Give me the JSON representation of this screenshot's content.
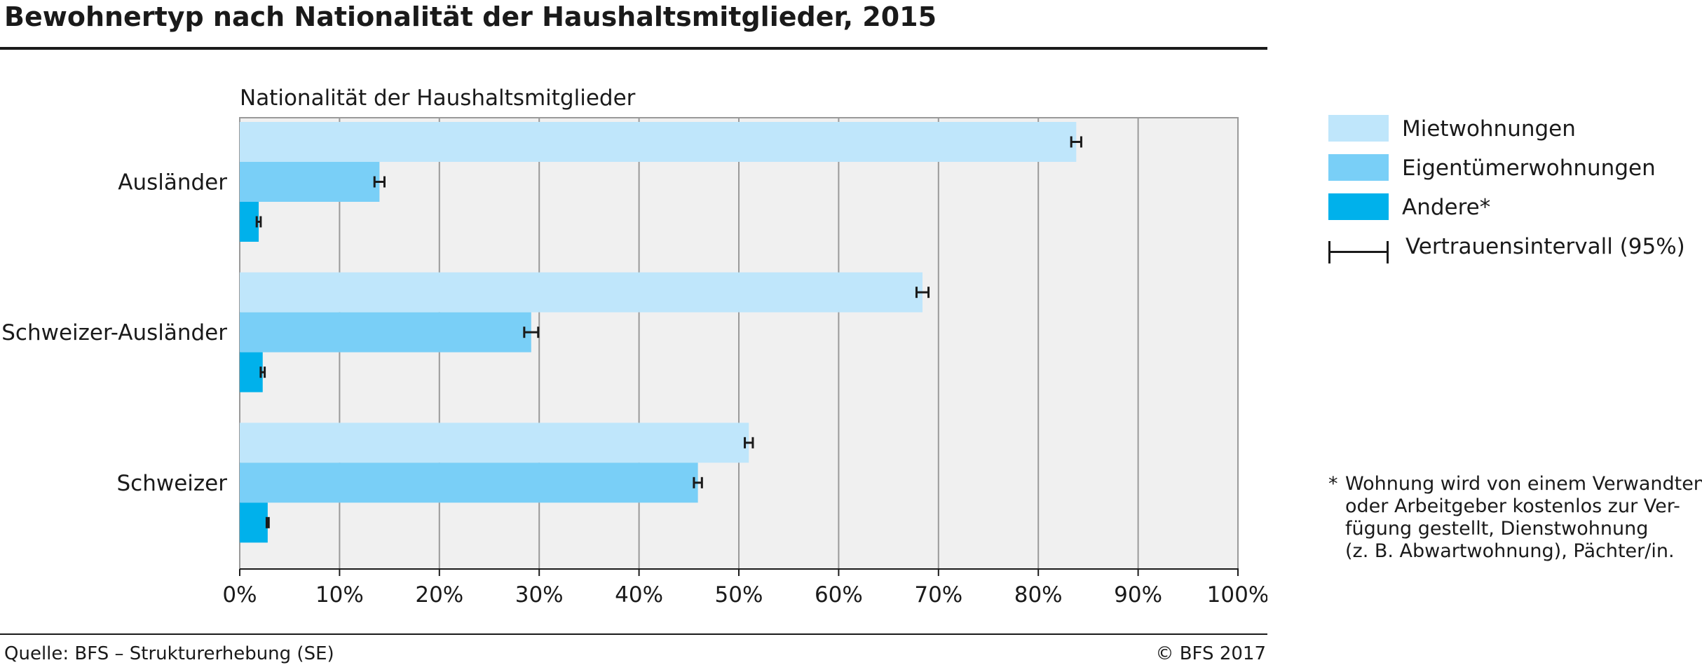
{
  "header": {
    "title": "Bewohnertyp nach Nationalität der Haushaltsmitglieder, 2015"
  },
  "footer": {
    "source": "Quelle: BFS – Strukturerhebung (SE)",
    "copyright": "© BFS 2017"
  },
  "legend": {
    "items": [
      {
        "label": "Mietwohnungen",
        "color": "#bfe6fb"
      },
      {
        "label": "Eigentümerwohnungen",
        "color": "#79cff7"
      },
      {
        "label": "Andere*"
      }
    ],
    "ci_label": "Vertrauensintervall (95%)"
  },
  "footnote": {
    "marker": "*",
    "text": "Wohnung wird von einem Verwandten\noder Arbeitgeber kostenlos zur Ver-\nfügung gestellt, Dienstwohnung\n(z. B. Abwartwohnung), Pächter/in."
  },
  "chart_data": {
    "type": "bar",
    "orientation": "horizontal",
    "category_axis_title": "Nationalität der Haushaltsmitglieder",
    "categories": [
      "Ausländer",
      "Schweizer-Ausländer",
      "Schweizer"
    ],
    "series": [
      {
        "name": "Mietwohnungen",
        "color": "#bfe6fb",
        "values": [
          83.8,
          68.4,
          51.0
        ],
        "ci": [
          [
            83.3,
            84.3
          ],
          [
            67.8,
            69.0
          ],
          [
            50.6,
            51.4
          ]
        ]
      },
      {
        "name": "Eigentümerwohnungen",
        "color": "#79cff7",
        "values": [
          14.0,
          29.2,
          45.9
        ],
        "ci": [
          [
            13.5,
            14.5
          ],
          [
            28.5,
            29.9
          ],
          [
            45.5,
            46.3
          ]
        ]
      },
      {
        "name": "Andere*",
        "color": "#00b1eb",
        "values": [
          1.9,
          2.3,
          2.8
        ],
        "ci": [
          [
            1.7,
            2.1
          ],
          [
            2.1,
            2.5
          ],
          [
            2.7,
            2.9
          ]
        ]
      }
    ],
    "xlim": [
      0,
      100
    ],
    "xticks": [
      0,
      10,
      20,
      30,
      40,
      50,
      60,
      70,
      80,
      90,
      100
    ],
    "tick_suffix": "%",
    "grid": true,
    "legend_position": "right"
  }
}
